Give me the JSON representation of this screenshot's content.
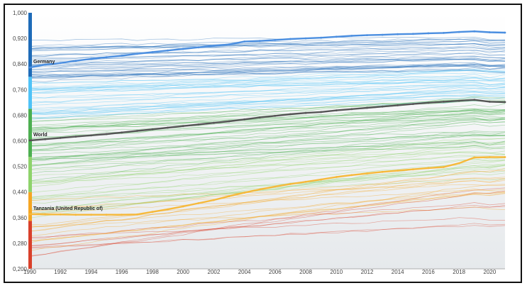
{
  "chart_data": {
    "type": "line",
    "title": "",
    "xlabel": "",
    "ylabel": "",
    "xlim": [
      1990,
      2021
    ],
    "ylim": [
      0.2,
      1.0
    ],
    "grid": false,
    "x_ticks": [
      "1990",
      "1992",
      "1994",
      "1996",
      "1998",
      "2000",
      "2002",
      "2004",
      "2006",
      "2008",
      "2010",
      "2012",
      "2014",
      "2016",
      "2018",
      "2020"
    ],
    "y_ticks": [
      "0,200",
      "0,280",
      "0,360",
      "0,440",
      "0,520",
      "0,600",
      "0,680",
      "0,760",
      "0,840",
      "0,920",
      "1,000"
    ],
    "x": [
      1990,
      1991,
      1992,
      1993,
      1994,
      1995,
      1996,
      1997,
      1998,
      1999,
      2000,
      2001,
      2002,
      2003,
      2004,
      2005,
      2006,
      2007,
      2008,
      2009,
      2010,
      2011,
      2012,
      2013,
      2014,
      2015,
      2016,
      2017,
      2018,
      2019,
      2020,
      2021
    ],
    "color_scale": [
      {
        "from": 0.2,
        "to": 0.35,
        "color": "#d9402b"
      },
      {
        "from": 0.35,
        "to": 0.44,
        "color": "#f5a623"
      },
      {
        "from": 0.44,
        "to": 0.55,
        "color": "#8ed36b"
      },
      {
        "from": 0.55,
        "to": 0.7,
        "color": "#4caf50"
      },
      {
        "from": 0.7,
        "to": 0.8,
        "color": "#4fc3f7"
      },
      {
        "from": 0.8,
        "to": 1.0,
        "color": "#1e6bb8"
      }
    ],
    "highlighted_series": [
      {
        "name": "Germany",
        "label": "Germany",
        "color": "#4a8ee0",
        "values": [
          0.829,
          0.838,
          0.843,
          0.85,
          0.856,
          0.861,
          0.866,
          0.872,
          0.877,
          0.882,
          0.887,
          0.892,
          0.897,
          0.901,
          0.91,
          0.912,
          0.915,
          0.918,
          0.92,
          0.922,
          0.925,
          0.928,
          0.93,
          0.931,
          0.933,
          0.934,
          0.936,
          0.937,
          0.94,
          0.942,
          0.939,
          0.938
        ]
      },
      {
        "name": "World",
        "label": "World",
        "color": "#555555",
        "values": [
          0.601,
          0.605,
          0.609,
          0.613,
          0.617,
          0.621,
          0.626,
          0.631,
          0.636,
          0.641,
          0.646,
          0.651,
          0.656,
          0.661,
          0.667,
          0.673,
          0.678,
          0.683,
          0.687,
          0.69,
          0.695,
          0.699,
          0.703,
          0.707,
          0.711,
          0.715,
          0.719,
          0.722,
          0.725,
          0.728,
          0.722,
          0.721
        ]
      },
      {
        "name": "Tanzania (United Republic of)",
        "label": "Tanzania (United Republic of)",
        "color": "#f6b93b",
        "values": [
          0.371,
          0.37,
          0.37,
          0.369,
          0.369,
          0.369,
          0.369,
          0.37,
          0.378,
          0.386,
          0.395,
          0.405,
          0.415,
          0.427,
          0.438,
          0.448,
          0.457,
          0.465,
          0.472,
          0.479,
          0.487,
          0.493,
          0.498,
          0.503,
          0.507,
          0.511,
          0.515,
          0.518,
          0.53,
          0.548,
          0.549,
          0.549
        ]
      }
    ]
  }
}
